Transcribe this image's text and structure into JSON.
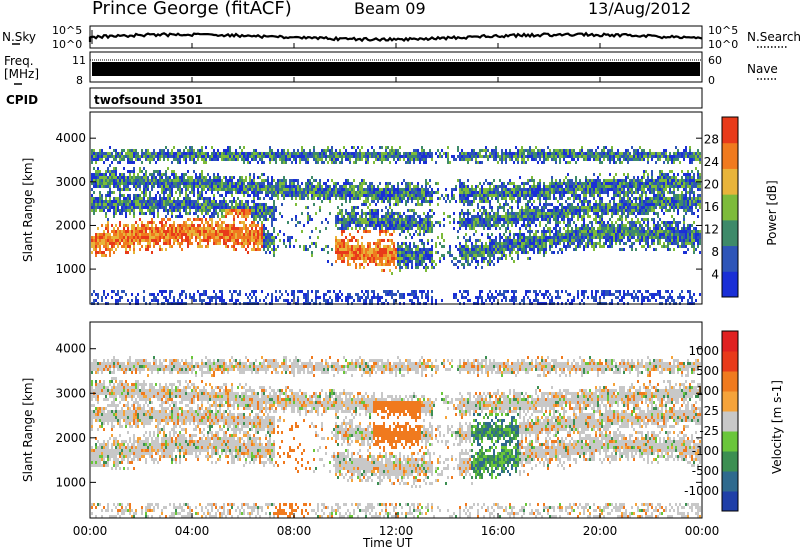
{
  "header": {
    "station": "Prince George (fitACF)",
    "beam": "Beam 09",
    "date": "13/Aug/2012"
  },
  "top_panels": {
    "nsky_label": "N.Sky",
    "nsky_ticks_left": [
      "10^5",
      "10^0"
    ],
    "nsearch_label": "N.Search",
    "nsearch_ticks_right": [
      "10^5",
      "10^0"
    ],
    "freq_label_1": "Freq.",
    "freq_label_2": "[MHz]",
    "freq_ticks_left": [
      "11",
      "8"
    ],
    "nave_label": "Nave",
    "nave_ticks_right": [
      "60",
      "0"
    ],
    "cpid_label": "CPID",
    "cpid_value": "twofsound 3501"
  },
  "chart_data": [
    {
      "type": "heatmap",
      "name": "power",
      "ylabel": "Slant Range [km]",
      "yticks": [
        "1000",
        "2000",
        "3000",
        "4000"
      ],
      "ylim": [
        200,
        4600
      ],
      "colorbar_label": "Power [dB]",
      "colorbar_ticks": [
        "4",
        "8",
        "12",
        "16",
        "20",
        "24",
        "28"
      ],
      "colors": [
        "#1a2fd6",
        "#2e55b8",
        "#3e8a6a",
        "#7dbb3a",
        "#e8b43a",
        "#f07a1e",
        "#e83a1a"
      ]
    },
    {
      "type": "heatmap",
      "name": "velocity",
      "ylabel": "Slant Range [km]",
      "yticks": [
        "1000",
        "2000",
        "3000",
        "4000"
      ],
      "ylim": [
        200,
        4600
      ],
      "colorbar_label": "Velocity [m s-1]",
      "colorbar_ticks": [
        "1000",
        "500",
        "100",
        "25",
        "-25",
        "-100",
        "-500",
        "-1000"
      ],
      "colors": [
        "#1f3fa8",
        "#2f6a8e",
        "#3c8f52",
        "#6ac63a",
        "#c8c8c8",
        "#f5a33a",
        "#f07a1e",
        "#e83a1a",
        "#e02020"
      ]
    }
  ],
  "time_axis": {
    "label": "Time UT",
    "ticks": [
      "00:00",
      "04:00",
      "08:00",
      "12:00",
      "16:00",
      "20:00",
      "00:00"
    ]
  }
}
